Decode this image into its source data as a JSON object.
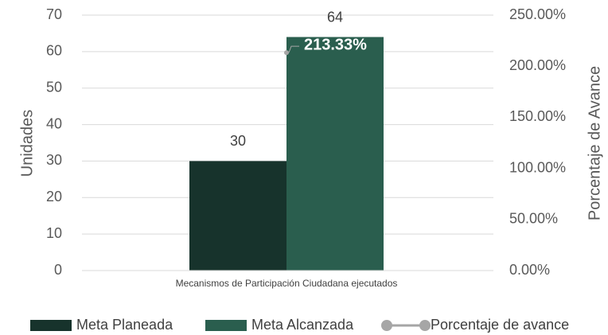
{
  "chart_data": {
    "type": "bar",
    "categories": [
      "Mecanismos de Participación Ciudadana ejecutados"
    ],
    "series": [
      {
        "name": "Meta Planeada",
        "color": "#17332c",
        "values": [
          30
        ]
      },
      {
        "name": "Meta Alcanzada",
        "color": "#2a5e4e",
        "values": [
          64
        ]
      },
      {
        "name": "Porcentaje de avance",
        "type": "line",
        "axis": "y2",
        "color": "#a6a6a6",
        "values": [
          213.33
        ],
        "value_labels": [
          "213.33%"
        ]
      }
    ],
    "y_label": "Unidades",
    "y2_label": "Porcentaje de Avance",
    "ylim": [
      0,
      70
    ],
    "yticks": [
      0,
      10,
      20,
      30,
      40,
      50,
      60,
      70
    ],
    "y2lim": [
      0,
      250
    ],
    "y2ticks": [
      {
        "value": 0,
        "label": "0.00%"
      },
      {
        "value": 50,
        "label": "50.00%"
      },
      {
        "value": 100,
        "label": "100.00%"
      },
      {
        "value": 150,
        "label": "150.00%"
      },
      {
        "value": 200,
        "label": "200.00%"
      },
      {
        "value": 250,
        "label": "250.00%"
      }
    ],
    "grid": true,
    "legend": "bottom"
  }
}
